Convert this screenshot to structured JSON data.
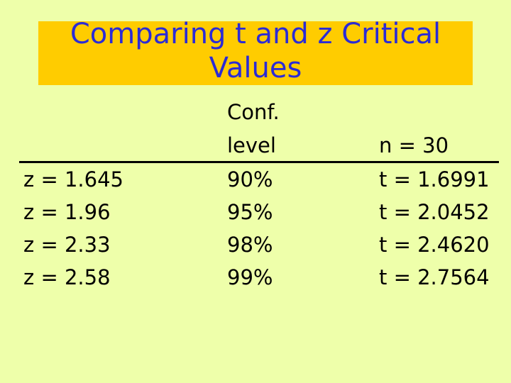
{
  "title": {
    "line1": "Comparing t and z Critical",
    "line2": "Values"
  },
  "table": {
    "header": {
      "conf_line1": "Conf.",
      "conf_line2": "level",
      "n_label": "n = 30"
    },
    "rows": [
      {
        "z": "z = 1.645",
        "conf": "90%",
        "t": "t = 1.6991"
      },
      {
        "z": "z = 1.96",
        "conf": "95%",
        "t": "t = 2.0452"
      },
      {
        "z": "z = 2.33",
        "conf": "98%",
        "t": "t = 2.4620"
      },
      {
        "z": "z = 2.58",
        "conf": "99%",
        "t": "t = 2.7564"
      }
    ]
  },
  "colors": {
    "background": "#eeffaa",
    "title_band": "#ffcc00",
    "title_text": "#2b2bd6",
    "body_text": "#000000"
  }
}
